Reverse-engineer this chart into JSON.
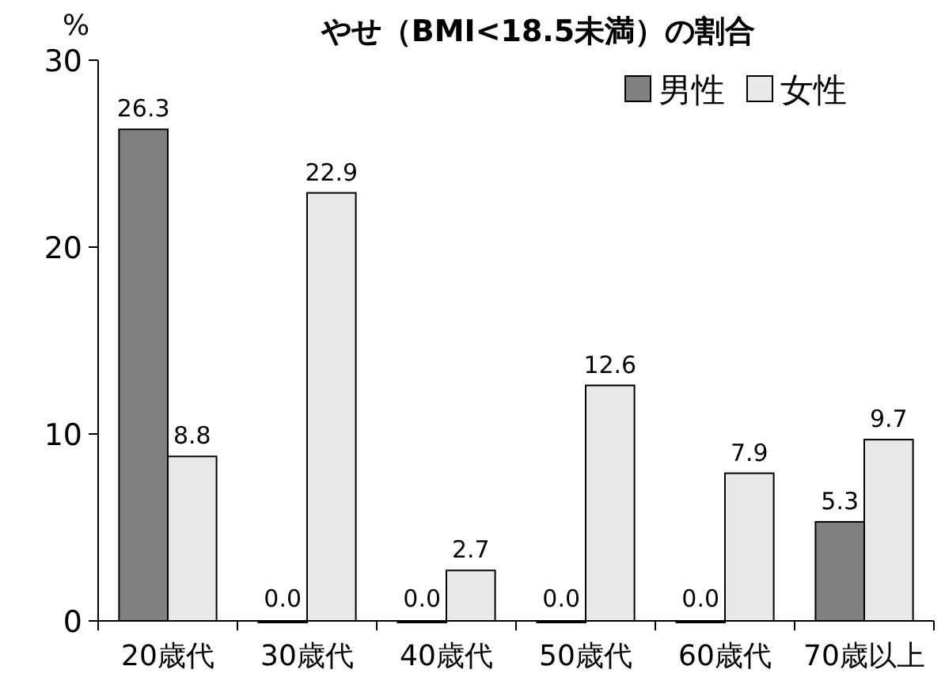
{
  "chart_data": {
    "type": "bar",
    "title": "やせ（BMI<18.5未満）の割合",
    "ylabel": "%",
    "categories": [
      "20歳代",
      "30歳代",
      "40歳代",
      "50歳代",
      "60歳代",
      "70歳以上"
    ],
    "series": [
      {
        "name": "男性",
        "color": "#808080",
        "values": [
          26.3,
          0,
          0,
          0,
          0,
          5.3
        ],
        "value_labels": [
          "26.3",
          "0.0",
          "0.0",
          "0.0",
          "0.0",
          "5.3"
        ]
      },
      {
        "name": "女性",
        "color": "#e8e8e8",
        "values": [
          8.8,
          22.9,
          2.7,
          12.6,
          7.9,
          9.7
        ],
        "value_labels": [
          "8.8",
          "22.9",
          "2.7",
          "12.6",
          "7.9",
          "9.7"
        ]
      }
    ],
    "ylim": [
      0,
      30
    ],
    "yticks": [
      0,
      10,
      20,
      30
    ],
    "legend": "top right"
  }
}
